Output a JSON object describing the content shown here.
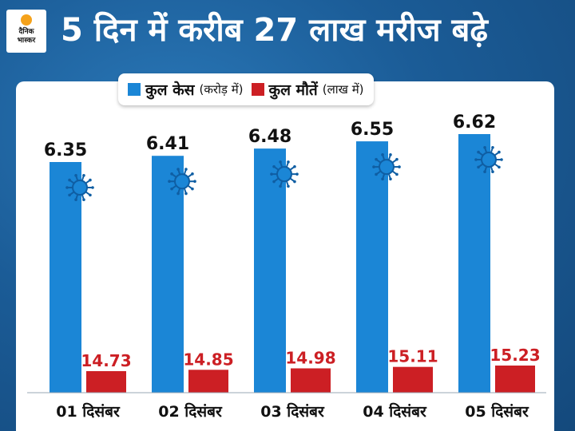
{
  "brand": {
    "line1": "दैनिक",
    "line2": "भास्कर"
  },
  "headline": "5 दिन में करीब 27 लाख मरीज बढ़े",
  "legend": [
    {
      "name": "कुल केस",
      "unit": "(करोड़ में)",
      "color": "#1b86d6"
    },
    {
      "name": "कुल मौतें",
      "unit": "(लाख में)",
      "color": "#cc1f24"
    }
  ],
  "chart_data": {
    "type": "bar",
    "categories": [
      "01 दिसंबर",
      "02 दिसंबर",
      "03 दिसंबर",
      "04 दिसंबर",
      "05 दिसंबर"
    ],
    "series": [
      {
        "name": "कुल केस",
        "unit": "करोड़",
        "values": [
          6.35,
          6.41,
          6.48,
          6.55,
          6.62
        ],
        "labels": [
          "6.35",
          "6.41",
          "6.48",
          "6.55",
          "6.62"
        ],
        "color": "#1b86d6"
      },
      {
        "name": "कुल मौतें",
        "unit": "लाख",
        "values": [
          14.73,
          14.85,
          14.98,
          15.11,
          15.23
        ],
        "labels": [
          "14.73",
          "14.85",
          "14.98",
          "15.11",
          "15.23"
        ],
        "color": "#cc1f24"
      }
    ]
  }
}
